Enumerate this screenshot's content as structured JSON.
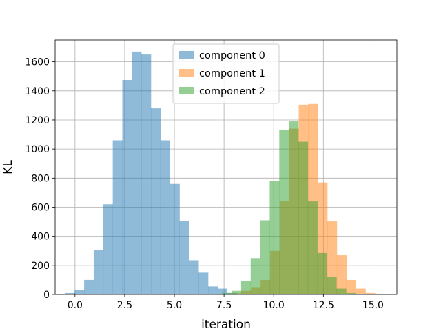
{
  "chart_data": {
    "type": "histogram",
    "title": "",
    "xlabel": "iteration",
    "ylabel": "KL",
    "xlim": [
      -1.0,
      16.2
    ],
    "ylim": [
      0,
      1750
    ],
    "xticks": [
      0.0,
      2.5,
      5.0,
      7.5,
      10.0,
      12.5,
      15.0
    ],
    "xtick_labels": [
      "0.0",
      "2.5",
      "5.0",
      "7.5",
      "10.0",
      "12.5",
      "15.0"
    ],
    "yticks": [
      0,
      200,
      400,
      600,
      800,
      1000,
      1200,
      1400,
      1600
    ],
    "ytick_labels": [
      "0",
      "200",
      "400",
      "600",
      "800",
      "1000",
      "1200",
      "1400",
      "1600"
    ],
    "grid": true,
    "legend_position": "top-center",
    "alpha": 0.5,
    "series": [
      {
        "name": "component 0",
        "color": "#1f77b4",
        "bins": [
          {
            "x0": -0.5,
            "x1": -0.02,
            "count": 10
          },
          {
            "x0": -0.02,
            "x1": 0.46,
            "count": 30
          },
          {
            "x0": 0.46,
            "x1": 0.94,
            "count": 100
          },
          {
            "x0": 0.94,
            "x1": 1.42,
            "count": 305
          },
          {
            "x0": 1.42,
            "x1": 1.9,
            "count": 620
          },
          {
            "x0": 1.9,
            "x1": 2.38,
            "count": 1060
          },
          {
            "x0": 2.38,
            "x1": 2.86,
            "count": 1475
          },
          {
            "x0": 2.86,
            "x1": 3.34,
            "count": 1670
          },
          {
            "x0": 3.34,
            "x1": 3.82,
            "count": 1650
          },
          {
            "x0": 3.82,
            "x1": 4.3,
            "count": 1280
          },
          {
            "x0": 4.3,
            "x1": 4.78,
            "count": 1060
          },
          {
            "x0": 4.78,
            "x1": 5.26,
            "count": 760
          },
          {
            "x0": 5.26,
            "x1": 5.74,
            "count": 505
          },
          {
            "x0": 5.74,
            "x1": 6.22,
            "count": 235
          },
          {
            "x0": 6.22,
            "x1": 6.7,
            "count": 150
          },
          {
            "x0": 6.7,
            "x1": 7.18,
            "count": 55
          },
          {
            "x0": 7.18,
            "x1": 7.66,
            "count": 40
          },
          {
            "x0": 7.66,
            "x1": 8.14,
            "count": 10
          }
        ]
      },
      {
        "name": "component 1",
        "color": "#ff7f0e",
        "bins": [
          {
            "x0": 7.9,
            "x1": 8.38,
            "count": 8
          },
          {
            "x0": 8.38,
            "x1": 8.86,
            "count": 25
          },
          {
            "x0": 8.86,
            "x1": 9.34,
            "count": 50
          },
          {
            "x0": 9.34,
            "x1": 9.82,
            "count": 100
          },
          {
            "x0": 9.82,
            "x1": 10.3,
            "count": 300
          },
          {
            "x0": 10.3,
            "x1": 10.78,
            "count": 640
          },
          {
            "x0": 10.78,
            "x1": 11.26,
            "count": 1140
          },
          {
            "x0": 11.26,
            "x1": 11.74,
            "count": 1305
          },
          {
            "x0": 11.74,
            "x1": 12.22,
            "count": 1310
          },
          {
            "x0": 12.22,
            "x1": 12.7,
            "count": 770
          },
          {
            "x0": 12.7,
            "x1": 13.18,
            "count": 505
          },
          {
            "x0": 13.18,
            "x1": 13.66,
            "count": 270
          },
          {
            "x0": 13.66,
            "x1": 14.14,
            "count": 100
          },
          {
            "x0": 14.14,
            "x1": 14.62,
            "count": 40
          },
          {
            "x0": 14.62,
            "x1": 15.1,
            "count": 10
          },
          {
            "x0": 15.1,
            "x1": 15.58,
            "count": 5
          }
        ]
      },
      {
        "name": "component 2",
        "color": "#2ca02c",
        "bins": [
          {
            "x0": 7.4,
            "x1": 7.88,
            "count": 10
          },
          {
            "x0": 7.88,
            "x1": 8.36,
            "count": 25
          },
          {
            "x0": 8.36,
            "x1": 8.84,
            "count": 95
          },
          {
            "x0": 8.84,
            "x1": 9.32,
            "count": 250
          },
          {
            "x0": 9.32,
            "x1": 9.8,
            "count": 510
          },
          {
            "x0": 9.8,
            "x1": 10.28,
            "count": 780
          },
          {
            "x0": 10.28,
            "x1": 10.76,
            "count": 1130
          },
          {
            "x0": 10.76,
            "x1": 11.24,
            "count": 1190
          },
          {
            "x0": 11.24,
            "x1": 11.72,
            "count": 1050
          },
          {
            "x0": 11.72,
            "x1": 12.2,
            "count": 640
          },
          {
            "x0": 12.2,
            "x1": 12.68,
            "count": 285
          },
          {
            "x0": 12.68,
            "x1": 13.16,
            "count": 120
          },
          {
            "x0": 13.16,
            "x1": 13.64,
            "count": 40
          },
          {
            "x0": 13.64,
            "x1": 14.12,
            "count": 10
          }
        ]
      }
    ]
  }
}
